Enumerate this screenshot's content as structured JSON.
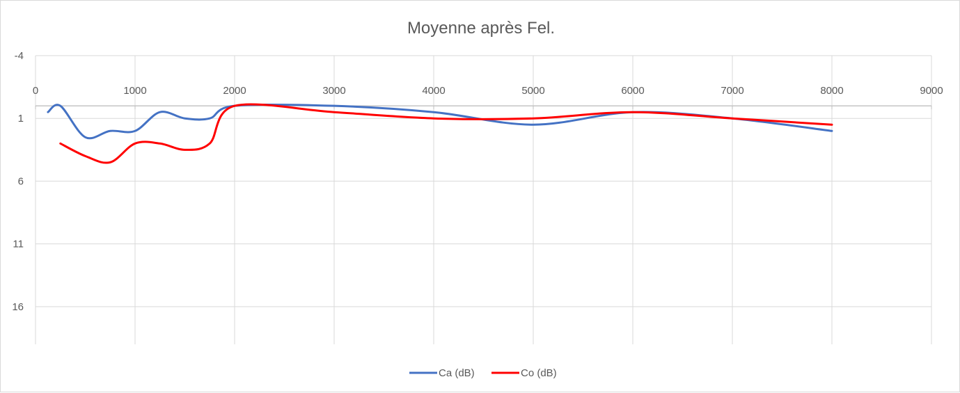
{
  "chart_data": {
    "type": "line",
    "title": "Moyenne après Fel.",
    "xlabel": "",
    "ylabel": "",
    "xlim": [
      0,
      9000
    ],
    "ylim": [
      -4,
      19
    ],
    "y_reversed": true,
    "x_ticks": [
      0,
      1000,
      2000,
      3000,
      4000,
      5000,
      6000,
      7000,
      8000,
      9000
    ],
    "x_tick_labels": [
      "0",
      "1000",
      "2000",
      "3000",
      "4000",
      "5000",
      "6000",
      "7000",
      "8000",
      "9000"
    ],
    "y_ticks": [
      -4,
      1,
      6,
      11,
      16
    ],
    "y_tick_labels": [
      "-4",
      "1",
      "6",
      "11",
      "16"
    ],
    "grid": true,
    "legend_position": "bottom",
    "smooth": true,
    "series": [
      {
        "name": "Ca (dB)",
        "color": "#4472C4",
        "x": [
          125,
          250,
          500,
          750,
          1000,
          1250,
          1500,
          1750,
          2000,
          3000,
          4000,
          5000,
          6000,
          7000,
          8000
        ],
        "y": [
          0.5,
          0,
          2.5,
          2,
          2,
          0.5,
          1,
          1,
          0,
          0,
          0.5,
          1.5,
          0.5,
          1,
          2
        ]
      },
      {
        "name": "Co (dB)",
        "color": "#FF0000",
        "x": [
          250,
          500,
          750,
          1000,
          1250,
          1500,
          1750,
          2000,
          3000,
          4000,
          5000,
          6000,
          7000,
          8000
        ],
        "y": [
          3,
          4,
          4.5,
          3,
          3,
          3.5,
          3,
          0,
          0.5,
          1,
          1,
          0.5,
          1,
          1.5
        ]
      }
    ]
  }
}
